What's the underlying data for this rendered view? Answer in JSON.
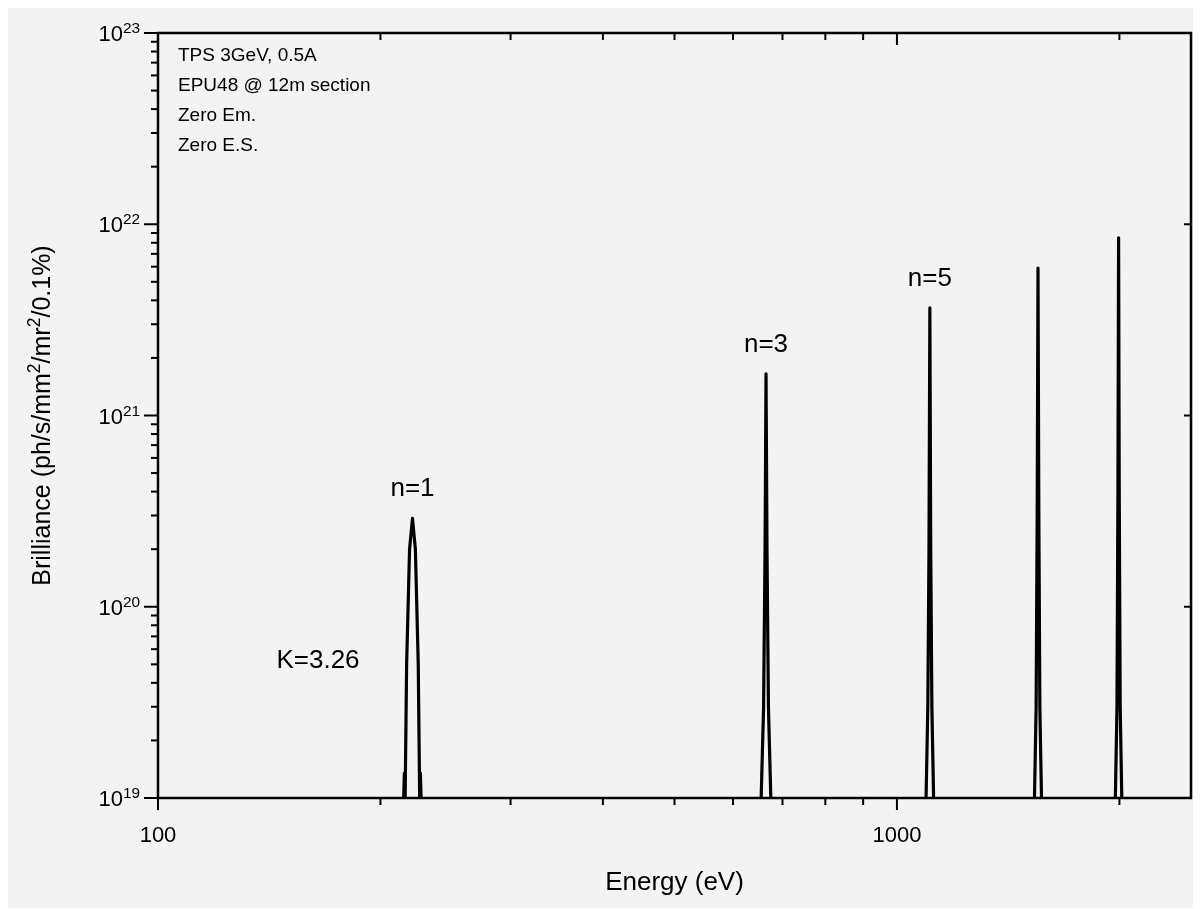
{
  "chart_data": {
    "type": "line",
    "xlabel": "Energy (eV)",
    "ylabel": "Brilliance (ph/s/mm$^{2}$/mr$^{2}$/0.1%)",
    "log": "xy",
    "xlim": [
      100,
      2500
    ],
    "ylim": [
      1e+19,
      1e+23
    ],
    "xticks": [
      100,
      {
        "value": 200,
        "label": null
      },
      {
        "value": 300,
        "label": null
      },
      {
        "value": 400,
        "label": null
      },
      {
        "value": 500,
        "label": null
      },
      {
        "value": 600,
        "label": null
      },
      {
        "value": 700,
        "label": null
      },
      {
        "value": 800,
        "label": null
      },
      {
        "value": 900,
        "label": null
      },
      1000,
      {
        "value": 2000,
        "label": null
      }
    ],
    "yticks": [
      {
        "value": 1e+19,
        "label": "10$^{19}$"
      },
      {
        "value": 2e+19,
        "label": null
      },
      {
        "value": 3e+19,
        "label": null
      },
      {
        "value": 4e+19,
        "label": null
      },
      {
        "value": 5e+19,
        "label": null
      },
      {
        "value": 6e+19,
        "label": null
      },
      {
        "value": 7e+19,
        "label": null
      },
      {
        "value": 8e+19,
        "label": null
      },
      {
        "value": 9e+19,
        "label": null
      },
      {
        "value": 1e+20,
        "label": "10$^{20}$"
      },
      {
        "value": 2e+20,
        "label": null
      },
      {
        "value": 3e+20,
        "label": null
      },
      {
        "value": 4e+20,
        "label": null
      },
      {
        "value": 5e+20,
        "label": null
      },
      {
        "value": 6e+20,
        "label": null
      },
      {
        "value": 7e+20,
        "label": null
      },
      {
        "value": 8e+20,
        "label": null
      },
      {
        "value": 9e+20,
        "label": null
      },
      {
        "value": 1e+21,
        "label": "10$^{21}$"
      },
      {
        "value": 2e+21,
        "label": null
      },
      {
        "value": 3e+21,
        "label": null
      },
      {
        "value": 4e+21,
        "label": null
      },
      {
        "value": 5e+21,
        "label": null
      },
      {
        "value": 6e+21,
        "label": null
      },
      {
        "value": 7e+21,
        "label": null
      },
      {
        "value": 8e+21,
        "label": null
      },
      {
        "value": 9e+21,
        "label": null
      },
      {
        "value": 1e+22,
        "label": "10$^{22}$"
      },
      {
        "value": 2e+22,
        "label": null
      },
      {
        "value": 3e+22,
        "label": null
      },
      {
        "value": 4e+22,
        "label": null
      },
      {
        "value": 5e+22,
        "label": null
      },
      {
        "value": 6e+22,
        "label": null
      },
      {
        "value": 7e+22,
        "label": null
      },
      {
        "value": 8e+22,
        "label": null
      },
      {
        "value": 9e+22,
        "label": null
      },
      {
        "value": 1e+23,
        "label": "10$^{23}$"
      }
    ],
    "grid": false,
    "line_style": "solid",
    "series": [
      {
        "color": "#000000",
        "x": [
          215,
          215.5,
          216,
          217,
          219,
          221,
          223,
          225,
          226,
          226.5,
          227,
          null,
          655,
          660,
          663,
          665,
          667,
          670,
          675,
          null,
          1095,
          1101,
          1105,
          1108,
          1111,
          1115,
          1121,
          null,
          1535,
          1543,
          1548,
          1552,
          1556,
          1561,
          1569,
          null,
          1975,
          1985,
          1991,
          1995,
          1999,
          2005,
          2015
        ],
        "values": [
          1e+19,
          1.35e+19,
          1e+19,
          5e+19,
          2e+20,
          2.9e+20,
          2e+20,
          5e+19,
          1e+19,
          1.35e+19,
          1e+19,
          null,
          1e+19,
          3e+19,
          2e+20,
          1.65e+21,
          2e+20,
          3e+19,
          1e+19,
          null,
          1e+19,
          3e+19,
          2e+20,
          3.65e+21,
          2e+20,
          3e+19,
          1e+19,
          null,
          1e+19,
          3e+19,
          3e+20,
          5.9e+21,
          3e+20,
          3e+19,
          1e+19,
          null,
          1e+19,
          3e+19,
          4e+20,
          8.5e+21,
          4e+20,
          3e+19,
          1e+19
        ]
      }
    ],
    "annotations": [
      "TPS 3GeV, 0.5A",
      "EPU48 @ 12m section",
      "Zero Em.",
      "Zero E.S.",
      "K=3.26",
      {
        "text": "n=1",
        "x": 221,
        "y": 2.9e+20
      },
      {
        "text": "n=3",
        "x": 665,
        "y": 1.65e+21
      },
      {
        "text": "n=5",
        "x": 1108,
        "y": 3.65e+21
      }
    ]
  }
}
